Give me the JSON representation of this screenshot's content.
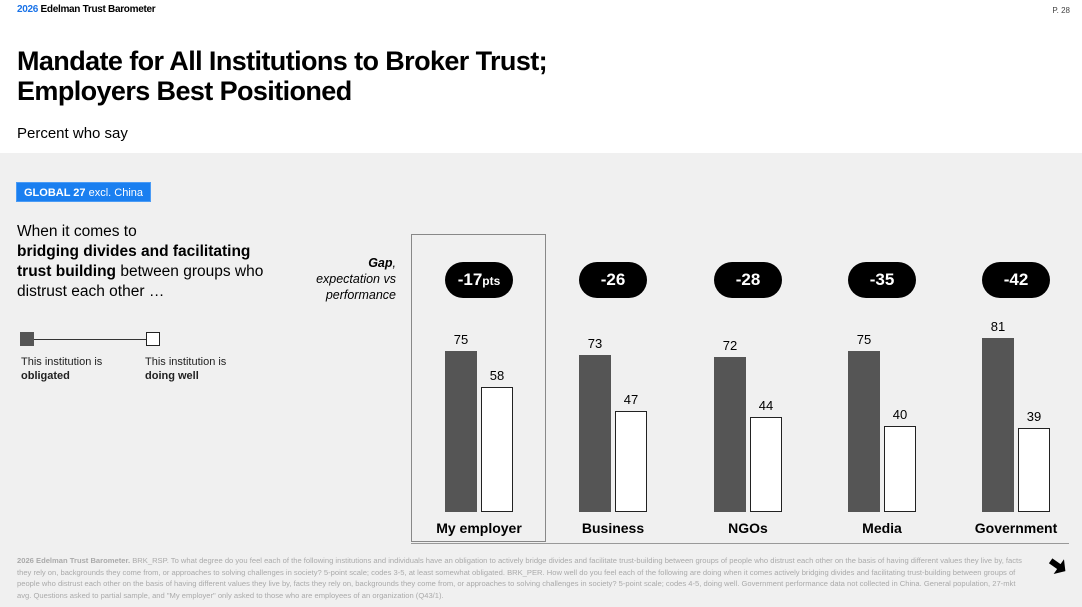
{
  "header": {
    "brand_year": "2026",
    "brand_name": "Edelman Trust Barometer",
    "page_number": "P. 28"
  },
  "title": {
    "line1": "Mandate for All Institutions to Broker Trust;",
    "line2": "Employers Best Positioned",
    "subtitle": "Percent who say"
  },
  "badge": {
    "bold": "GLOBAL 27",
    "rest": " excl. China",
    "color": "#1a7ff0"
  },
  "intro": {
    "line1": "When it comes to",
    "bold": "bridging divides and facilitating trust building",
    "rest": " between groups who distrust each other …"
  },
  "legend": {
    "obligated_prefix": "This institution is",
    "obligated_bold": "obligated",
    "doing_well_prefix": "This institution is",
    "doing_well_bold": "doing well"
  },
  "gap_label": {
    "bold": "Gap",
    "rest_line1": ", ",
    "line2": "expectation vs",
    "line3": "performance"
  },
  "chart_data": {
    "type": "bar",
    "title": "Mandate for All Institutions to Broker Trust; Employers Best Positioned",
    "subtitle": "Percent who say",
    "categories": [
      "My employer",
      "Business",
      "NGOs",
      "Media",
      "Government"
    ],
    "series": [
      {
        "name": "This institution is obligated",
        "color": "#555555",
        "values": [
          75,
          73,
          72,
          75,
          81
        ]
      },
      {
        "name": "This institution is doing well",
        "color": "#ffffff",
        "values": [
          58,
          47,
          44,
          40,
          39
        ]
      }
    ],
    "gaps": [
      "-17pts",
      "-26",
      "-28",
      "-35",
      "-42"
    ],
    "gap_label": "Gap, expectation vs performance",
    "highlighted_category": "My employer",
    "xlabel": "",
    "ylabel": "",
    "ylim": [
      0,
      100
    ],
    "grid": false,
    "legend_position": "left"
  },
  "pills": [
    {
      "num": "-17",
      "unit": "pts"
    },
    {
      "num": "-26",
      "unit": ""
    },
    {
      "num": "-28",
      "unit": ""
    },
    {
      "num": "-35",
      "unit": ""
    },
    {
      "num": "-42",
      "unit": ""
    }
  ],
  "categories": [
    "My employer",
    "Business",
    "NGOs",
    "Media",
    "Government"
  ],
  "obligated": [
    "75",
    "73",
    "72",
    "75",
    "81"
  ],
  "doing_well": [
    "58",
    "47",
    "44",
    "40",
    "39"
  ],
  "footnote": {
    "bold": "2026 Edelman Trust Barometer.",
    "text": " BRK_RSP. To what degree do you feel each of the following institutions and individuals have an obligation to actively bridge divides and facilitate trust-building between groups of people who distrust each other on the basis of having different values they live by, facts they rely on, backgrounds they come from, or approaches to solving challenges in society? 5-point scale; codes 3-5, at least somewhat obligated. BRK_PER. How well do you feel each of the following are doing when it comes actively bridging divides and facilitating trust-building between groups of people who distrust each other on the basis of having different values they live by, facts they rely on, backgrounds they come from, or approaches to solving challenges in society? 5-point scale; codes 4-5, doing well. Government performance data not collected in China. General population, 27-mkt avg. Questions asked to partial sample, and \"My employer\" only asked to those who are employees of an organization (Q43/1)."
  },
  "nav": {
    "next_icon": "arrow-down-right-icon"
  }
}
